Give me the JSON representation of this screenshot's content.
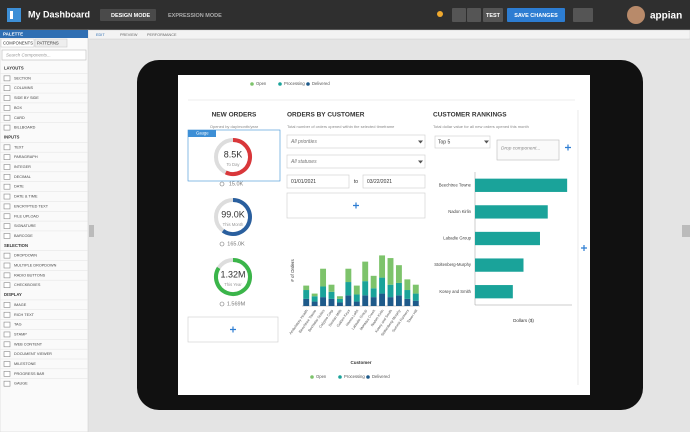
{
  "header": {
    "title": "My Dashboard",
    "design_mode": "DESIGN MODE",
    "expression_mode": "EXPRESSION MODE",
    "test": "TEST",
    "save_changes": "SAVE CHANGES",
    "brand": "appian"
  },
  "palette": {
    "title": "PALETTE",
    "tabs": [
      "COMPONENTS",
      "PATTERNS"
    ],
    "search_placeholder": "Search Components...",
    "groups": [
      {
        "name": "LAYOUTS",
        "items": [
          "SECTION",
          "COLUMNS",
          "SIDE BY SIDE",
          "BOX",
          "CARD",
          "BILLBOARD"
        ]
      },
      {
        "name": "INPUTS",
        "items": [
          "TEXT",
          "PARAGRAPH",
          "INTEGER",
          "DECIMAL",
          "DATE",
          "DATE & TIME",
          "ENCRYPTED TEXT",
          "FILE UPLOAD",
          "SIGNATURE",
          "BARCODE"
        ]
      },
      {
        "name": "SELECTION",
        "items": [
          "DROPDOWN",
          "MULTIPLE DROPDOWN",
          "RADIO BUTTONS",
          "CHECKBOXES"
        ]
      },
      {
        "name": "DISPLAY",
        "items": [
          "IMAGE",
          "RICH TEXT",
          "TAG",
          "STAMP",
          "WEB CONTENT",
          "DOCUMENT VIEWER",
          "MILESTONE",
          "PROGRESS BAR",
          "GAUGE"
        ]
      }
    ]
  },
  "editor_tabs": [
    "EDIT",
    "PREVIEW",
    "PERFORMANCE"
  ],
  "dashboard": {
    "new_orders": {
      "title": "NEW ORDERS",
      "subtitle": "Opened by day/month/year",
      "selected_label": "Gauge",
      "gauges": [
        {
          "value_text": "8.5K",
          "caption": "To Day",
          "target": "15.0K",
          "fill_percent": 57,
          "color": "#d9373a"
        },
        {
          "value_text": "99.0K",
          "caption": "This Month",
          "target": "165.0K",
          "fill_percent": 60,
          "color": "#2a5f9e"
        },
        {
          "value_text": "1.32M",
          "caption": "This Year",
          "target": "1.569M",
          "fill_percent": 84,
          "color": "#3bb54a"
        }
      ]
    },
    "orders_by_customer": {
      "title": "ORDERS BY CUSTOMER",
      "subtitle": "Total number of orders opened within the selected timeframe",
      "filters": [
        "All priorities",
        "All statuses"
      ],
      "date_from": "01/01/2021",
      "date_to_label": "to",
      "date_to": "03/22/2021"
    },
    "customer_rankings": {
      "title": "CUSTOMER RANKINGS",
      "subtitle": "Total dollar value for all new orders opened this month",
      "dropdown": "Top 5",
      "drop_placeholder": "Drop component..."
    }
  },
  "chart_data": [
    {
      "type": "stacked-bar",
      "y_label": "# of Orders",
      "x_label": "Customer",
      "categories": [
        "Ambulatory Health",
        "Beechtree Towne",
        "Bechtolar Suites",
        "Calypso Corp",
        "Denton Mills",
        "Golden Keys",
        "Hanna Lofts",
        "Labadie Group",
        "Montoya Creek",
        "Nadon Kirlin",
        "Kosey and Smith",
        "Stoltenberg-Murphy",
        "Summit Partners",
        "Tower Hill"
      ],
      "ylim": [
        0,
        80
      ],
      "series": [
        {
          "name": "Open",
          "color": "#7dc36b",
          "values": [
            5,
            3,
            20,
            8,
            3,
            15,
            10,
            22,
            14,
            25,
            30,
            20,
            12,
            10
          ]
        },
        {
          "name": "Processing",
          "color": "#1aa39a",
          "values": [
            10,
            6,
            12,
            8,
            4,
            15,
            8,
            16,
            10,
            18,
            14,
            14,
            10,
            8
          ]
        },
        {
          "name": "Delivered",
          "color": "#1e5a8a",
          "values": [
            8,
            5,
            10,
            8,
            4,
            12,
            5,
            12,
            10,
            14,
            10,
            12,
            8,
            6
          ]
        }
      ]
    },
    {
      "type": "hbar",
      "x_label": "Dollars ($)",
      "categories": [
        "Beechtree Towne",
        "Nadon Kirlin",
        "Labadie Group",
        "Stoltenberg-Murphy",
        "Kosey and Smith"
      ],
      "values": [
        95,
        75,
        67,
        50,
        39
      ],
      "color": "#1aa39a",
      "xlim": [
        0,
        100
      ]
    }
  ]
}
